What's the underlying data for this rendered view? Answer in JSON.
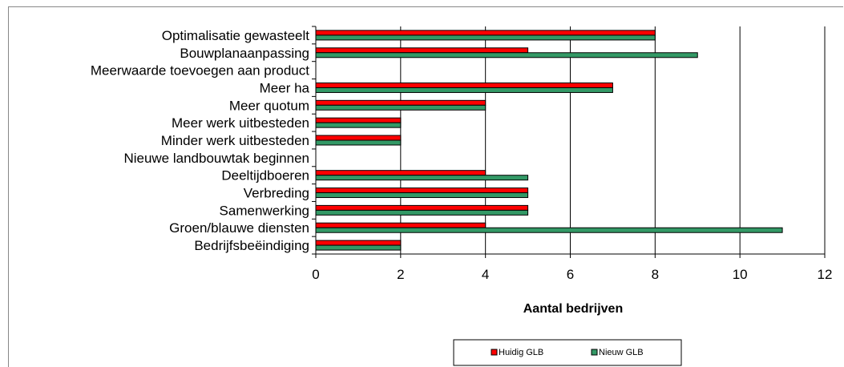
{
  "chart_data": {
    "type": "bar",
    "orientation": "horizontal",
    "categories": [
      "Optimalisatie gewasteelt",
      "Bouwplanaanpassing",
      "Meerwaarde toevoegen aan product",
      "Meer ha",
      "Meer quotum",
      "Meer werk uitbesteden",
      "Minder werk uitbesteden",
      "Nieuwe landbouwtak beginnen",
      "Deeltijdboeren",
      "Verbreding",
      "Samenwerking",
      "Groen/blauwe diensten",
      "Bedrijfsbeëindiging"
    ],
    "series": [
      {
        "name": "Huidig GLB",
        "color": "#ff0000",
        "values": [
          8,
          5,
          0,
          7,
          4,
          2,
          2,
          0,
          4,
          5,
          5,
          4,
          2
        ]
      },
      {
        "name": "Nieuw GLB",
        "color": "#339966",
        "values": [
          8,
          9,
          0,
          7,
          4,
          2,
          2,
          0,
          5,
          5,
          5,
          11,
          2
        ]
      }
    ],
    "xlabel": "Aantal bedrijven",
    "xlim": [
      0,
      12
    ],
    "xticks": [
      "0",
      "2",
      "4",
      "6",
      "8",
      "10",
      "12"
    ],
    "grid": "vertical major gridlines",
    "legend_position": "bottom"
  }
}
